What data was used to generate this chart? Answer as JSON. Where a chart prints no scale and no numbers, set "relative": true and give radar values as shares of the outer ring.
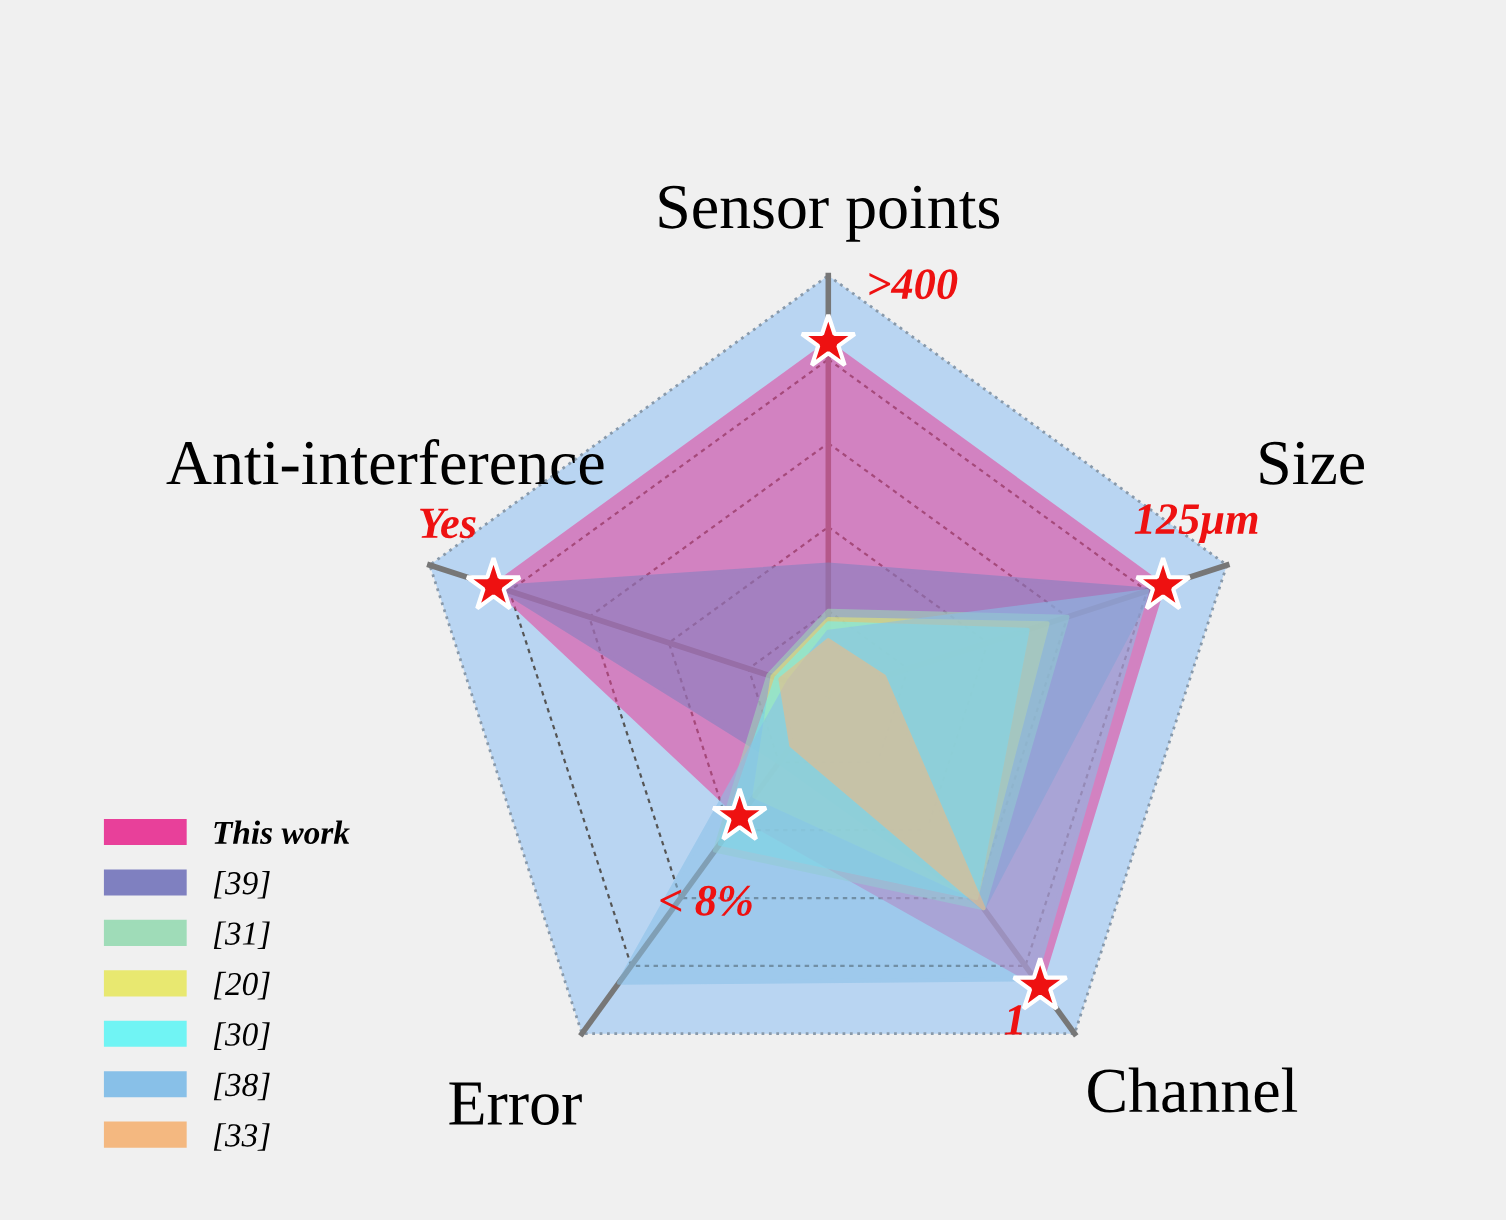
{
  "chart_data": {
    "type": "radar",
    "relative": true,
    "categories": [
      "Sensor points",
      "Size",
      "Channel",
      "Error",
      "Anti-interference"
    ],
    "series": [
      {
        "name": "This work",
        "color": "#e8409a",
        "values": [
          0.84,
          0.84,
          0.86,
          0.36,
          0.84
        ],
        "marker": "star"
      },
      {
        "name": "[39]",
        "color": "#7f80c0",
        "values": [
          0.31,
          0.81,
          0.63,
          0.2,
          0.83
        ]
      },
      {
        "name": "[31]",
        "color": "#9fdcb8",
        "values": [
          0.2,
          0.6,
          0.63,
          0.46,
          0.15
        ]
      },
      {
        "name": "[20]",
        "color": "#e8e870",
        "values": [
          0.18,
          0.55,
          0.6,
          0.3,
          0.14
        ]
      },
      {
        "name": "[30]",
        "color": "#70f4f4",
        "values": [
          0.17,
          0.5,
          0.6,
          0.44,
          0.13
        ]
      },
      {
        "name": "[38]",
        "color": "#88c0e8",
        "values": [
          0.15,
          0.8,
          0.84,
          0.85,
          0.1
        ]
      },
      {
        "name": "[33]",
        "color": "#f4b880",
        "values": [
          0.13,
          0.14,
          0.63,
          0.15,
          0.12
        ]
      }
    ],
    "annotations": [
      {
        "text": ">400",
        "x": "Sensor points"
      },
      {
        "text": "125μm",
        "x": "Size"
      },
      {
        "text": "1",
        "x": "Channel"
      },
      {
        "text": "< 8%",
        "x": "Error"
      },
      {
        "text": "Yes",
        "x": "Anti-interference"
      }
    ],
    "legend": "bottom left"
  }
}
